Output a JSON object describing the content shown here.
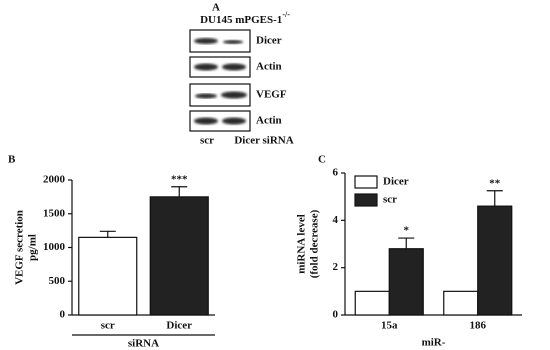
{
  "blot": {
    "panel": "A",
    "title": "DU145 mPGES-1",
    "title_superscript": "-/-",
    "rows": [
      "Dicer",
      "Actin",
      "VEGF",
      "Actin"
    ],
    "lanes": [
      "scr",
      "Dicer siRNA"
    ]
  },
  "chart_data": [
    {
      "type": "bar",
      "panel": "B",
      "ylabel": [
        "VEGF secretion",
        "pg/ml"
      ],
      "xlabel": "siRNA",
      "categories": [
        "scr",
        "Dicer"
      ],
      "values": [
        1150,
        1750
      ],
      "errors": [
        90,
        150
      ],
      "annotations": [
        null,
        "***"
      ],
      "colors": [
        "#ffffff",
        "#222222"
      ],
      "ylim": [
        0,
        2000
      ],
      "yticks": [
        0,
        500,
        1000,
        1500,
        2000
      ]
    },
    {
      "type": "bar",
      "panel": "C",
      "ylabel": [
        "miRNA level",
        "(fold decrease)"
      ],
      "xlabel": "miR-",
      "categories": [
        "15a",
        "186"
      ],
      "series": [
        {
          "name": "Dicer",
          "color": "#ffffff",
          "values": [
            1,
            1
          ]
        },
        {
          "name": "scr",
          "color": "#222222",
          "values": [
            2.8,
            4.6
          ],
          "errors": [
            0.45,
            0.65
          ],
          "annotations": [
            "*",
            "**"
          ]
        }
      ],
      "ylim": [
        0,
        6
      ],
      "yticks": [
        0,
        2,
        4,
        6
      ]
    }
  ]
}
